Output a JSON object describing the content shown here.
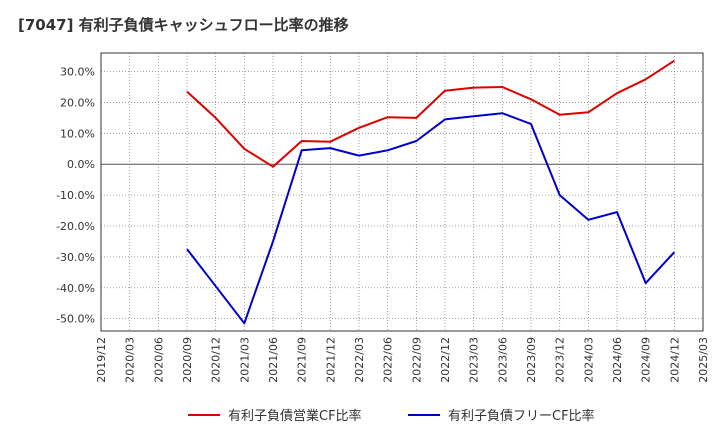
{
  "chart_data": {
    "type": "line",
    "title": "[7047]  有利子負債キャッシュフロー比率の推移",
    "x": [
      "2020/09",
      "2020/12",
      "2021/03",
      "2021/06",
      "2021/09",
      "2021/12",
      "2022/03",
      "2022/06",
      "2022/09",
      "2022/12",
      "2023/03",
      "2023/06",
      "2023/09",
      "2023/12",
      "2024/03",
      "2024/06",
      "2024/09",
      "2024/12"
    ],
    "x_ticks": [
      "2019/12",
      "2020/03",
      "2020/06",
      "2020/09",
      "2020/12",
      "2021/03",
      "2021/06",
      "2021/09",
      "2021/12",
      "2022/03",
      "2022/06",
      "2022/09",
      "2022/12",
      "2023/03",
      "2023/06",
      "2023/09",
      "2023/12",
      "2024/03",
      "2024/06",
      "2024/09",
      "2024/12",
      "2025/03"
    ],
    "y_ticks": [
      "30.0%",
      "20.0%",
      "10.0%",
      "0.0%",
      "-10.0%",
      "-20.0%",
      "-30.0%",
      "-40.0%",
      "-50.0%"
    ],
    "y_tick_values": [
      30,
      20,
      10,
      0,
      -10,
      -20,
      -30,
      -40,
      -50
    ],
    "ylim": [
      -54,
      36
    ],
    "grid": true,
    "legend_position": "bottom",
    "series": [
      {
        "name": "有利子負債営業CF比率",
        "color": "#dd0000",
        "values": [
          23.5,
          15.0,
          5.0,
          -0.8,
          7.5,
          7.3,
          11.8,
          15.2,
          15.0,
          23.8,
          24.8,
          25.0,
          21.0,
          16.0,
          16.8,
          23.0,
          27.5,
          33.5
        ]
      },
      {
        "name": "有利子負債フリーCF比率",
        "color": "#0000cc",
        "values": [
          -27.5,
          -39.5,
          -51.5,
          -25.0,
          4.5,
          5.2,
          2.8,
          4.5,
          7.5,
          14.5,
          15.5,
          16.5,
          13.0,
          -10.0,
          -18.0,
          -15.5,
          -38.5,
          -28.5
        ]
      }
    ]
  }
}
